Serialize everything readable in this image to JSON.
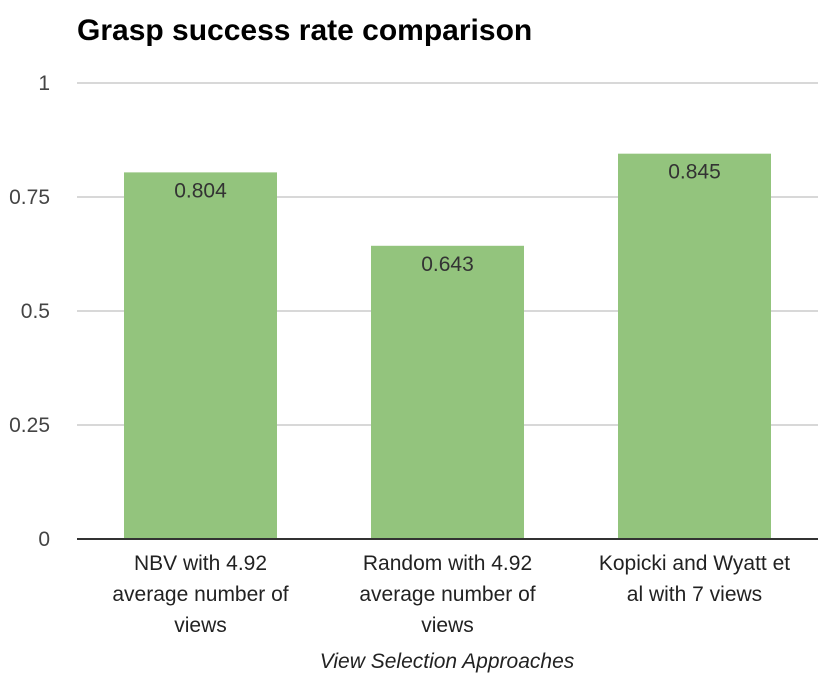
{
  "chart_data": {
    "type": "bar",
    "title": "Grasp success rate comparison",
    "xlabel": "View Selection Approaches",
    "ylabel": "",
    "ylim": [
      0,
      1
    ],
    "yticks": [
      0,
      0.25,
      0.5,
      0.75,
      1
    ],
    "ytick_labels": [
      "0",
      "0.25",
      "0.5",
      "0.75",
      "1"
    ],
    "categories": [
      [
        "NBV with 4.92",
        "average number of",
        "views"
      ],
      [
        "Random with 4.92",
        "average number of",
        "views"
      ],
      [
        "Kopicki and Wyatt et",
        "al with 7 views"
      ]
    ],
    "values": [
      0.804,
      0.643,
      0.845
    ],
    "data_labels": [
      "0.804",
      "0.643",
      "0.845"
    ],
    "grid": true,
    "colors": {
      "bar": "#93c47d",
      "grid": "#cccccc",
      "axis": "#333333"
    }
  }
}
